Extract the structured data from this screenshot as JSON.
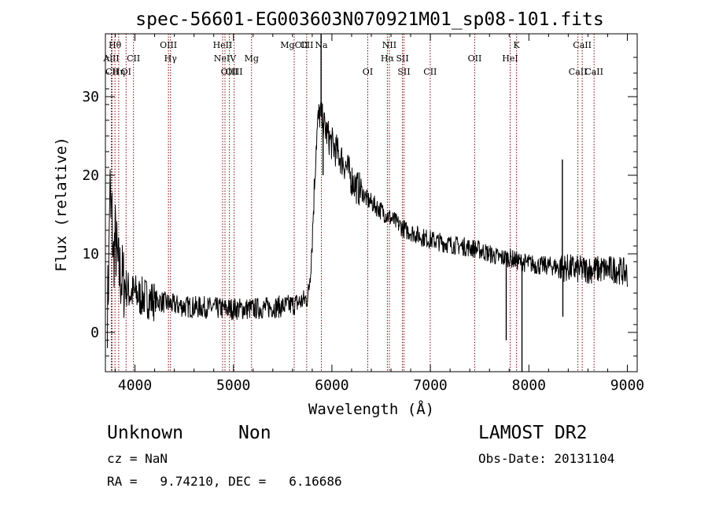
{
  "chart_data": {
    "type": "line",
    "title": "spec-56601-EG003603N070921M01_sp08-101.fits",
    "xlabel": "Wavelength (Å)",
    "ylabel": "Flux (relative)",
    "xlim": [
      3700,
      9100
    ],
    "ylim": [
      -5,
      38
    ],
    "xticks": [
      4000,
      5000,
      6000,
      7000,
      8000,
      9000
    ],
    "yticks": [
      0,
      10,
      20,
      30
    ],
    "colors": {
      "spectrum": "#000000",
      "lines": "#8b0000"
    },
    "spectral_lines": [
      {
        "label": "AlII",
        "wavelength": 3760,
        "row": 2
      },
      {
        "label": "Hθ",
        "wavelength": 3797,
        "row": 1
      },
      {
        "label": "CII",
        "wavelength": 3768,
        "row": 3
      },
      {
        "label": "Hη",
        "wavelength": 3835,
        "row": 3
      },
      {
        "label": "OI",
        "wavelength": 3910,
        "row": 3
      },
      {
        "label": "CII",
        "wavelength": 3985,
        "row": 2
      },
      {
        "label": "OIII",
        "wavelength": 4340,
        "row": 1
      },
      {
        "label": "Hγ",
        "wavelength": 4361,
        "row": 2
      },
      {
        "label": "HeII",
        "wavelength": 4890,
        "row": 1
      },
      {
        "label": "NeIV",
        "wavelength": 4914,
        "row": 2
      },
      {
        "label": "OIII",
        "wavelength": 4959,
        "row": 3
      },
      {
        "label": "OIII",
        "wavelength": 5007,
        "row": 3
      },
      {
        "label": "Mg",
        "wavelength": 5184,
        "row": 2
      },
      {
        "label": "MgCII",
        "wavelength": 5617,
        "row": 1
      },
      {
        "label": "CII",
        "wavelength": 5744,
        "row": 1
      },
      {
        "label": "Na",
        "wavelength": 5893,
        "row": 1
      },
      {
        "label": "OI",
        "wavelength": 6364,
        "row": 3
      },
      {
        "label": "NII",
        "wavelength": 6583,
        "row": 1
      },
      {
        "label": "Hα",
        "wavelength": 6563,
        "row": 2
      },
      {
        "label": "SII",
        "wavelength": 6716,
        "row": 2
      },
      {
        "label": "SII",
        "wavelength": 6731,
        "row": 3
      },
      {
        "label": "CII",
        "wavelength": 6998,
        "row": 3
      },
      {
        "label": "OII",
        "wavelength": 7450,
        "row": 2
      },
      {
        "label": "HeI",
        "wavelength": 7810,
        "row": 2
      },
      {
        "label": "K",
        "wavelength": 7875,
        "row": 1
      },
      {
        "label": "CaII",
        "wavelength": 8542,
        "row": 1
      },
      {
        "label": "CaII",
        "wavelength": 8498,
        "row": 3
      },
      {
        "label": "CaII",
        "wavelength": 8662,
        "row": 3
      }
    ],
    "spectrum": [
      [
        3720,
        3
      ],
      [
        3735,
        8
      ],
      [
        3745,
        20
      ],
      [
        3755,
        14
      ],
      [
        3765,
        16
      ],
      [
        3780,
        9
      ],
      [
        3800,
        12
      ],
      [
        3830,
        8
      ],
      [
        3860,
        7
      ],
      [
        3900,
        6
      ],
      [
        3950,
        5
      ],
      [
        4000,
        5
      ],
      [
        4050,
        4.5
      ],
      [
        4100,
        4.5
      ],
      [
        4150,
        4.2
      ],
      [
        4200,
        4
      ],
      [
        4250,
        4
      ],
      [
        4300,
        3.8
      ],
      [
        4350,
        3.6
      ],
      [
        4400,
        3.5
      ],
      [
        4450,
        3.4
      ],
      [
        4500,
        3.3
      ],
      [
        4600,
        3.2
      ],
      [
        4700,
        3.2
      ],
      [
        4800,
        3.1
      ],
      [
        4900,
        3
      ],
      [
        5000,
        3
      ],
      [
        5100,
        3
      ],
      [
        5200,
        3
      ],
      [
        5300,
        3.1
      ],
      [
        5400,
        3.2
      ],
      [
        5500,
        3.3
      ],
      [
        5600,
        3.5
      ],
      [
        5700,
        4
      ],
      [
        5760,
        4.5
      ],
      [
        5780,
        8
      ],
      [
        5800,
        12
      ],
      [
        5820,
        18
      ],
      [
        5840,
        24
      ],
      [
        5860,
        27
      ],
      [
        5880,
        28
      ],
      [
        5900,
        27
      ],
      [
        5930,
        26
      ],
      [
        5960,
        25
      ],
      [
        6000,
        24
      ],
      [
        6050,
        23
      ],
      [
        6100,
        22
      ],
      [
        6150,
        21
      ],
      [
        6200,
        19.5
      ],
      [
        6250,
        18.5
      ],
      [
        6300,
        18
      ],
      [
        6350,
        17
      ],
      [
        6400,
        16.5
      ],
      [
        6450,
        16
      ],
      [
        6500,
        15.5
      ],
      [
        6550,
        15
      ],
      [
        6600,
        14.5
      ],
      [
        6650,
        14
      ],
      [
        6700,
        13.5
      ],
      [
        6750,
        13
      ],
      [
        6800,
        12.8
      ],
      [
        6850,
        12.5
      ],
      [
        6900,
        12.2
      ],
      [
        6950,
        12
      ],
      [
        7000,
        11.8
      ],
      [
        7100,
        11.5
      ],
      [
        7200,
        11.2
      ],
      [
        7300,
        11
      ],
      [
        7400,
        10.8
      ],
      [
        7500,
        10.5
      ],
      [
        7600,
        10
      ],
      [
        7700,
        9.5
      ],
      [
        7800,
        9.5
      ],
      [
        7900,
        9
      ],
      [
        8000,
        8.8
      ],
      [
        8100,
        8.5
      ],
      [
        8200,
        8.5
      ],
      [
        8300,
        8.3
      ],
      [
        8400,
        8.2
      ],
      [
        8500,
        8
      ],
      [
        8600,
        8
      ],
      [
        8700,
        8
      ],
      [
        8800,
        8
      ],
      [
        8900,
        8
      ],
      [
        9000,
        7.5
      ]
    ],
    "features": [
      {
        "x": 5890,
        "y": 38
      },
      {
        "x": 5910,
        "y": 20
      },
      {
        "x": 7770,
        "y": -1
      },
      {
        "x": 7930,
        "y": -5
      },
      {
        "x": 8340,
        "y": 22
      },
      {
        "x": 8345,
        "y": 2
      }
    ]
  },
  "info": {
    "object_class": "Unknown",
    "subclass": "Non",
    "survey": "LAMOST DR2",
    "redshift": "cz = NaN",
    "obs_date": "Obs-Date: 20131104",
    "coords": "RA =   9.74210, DEC =   6.16686"
  }
}
